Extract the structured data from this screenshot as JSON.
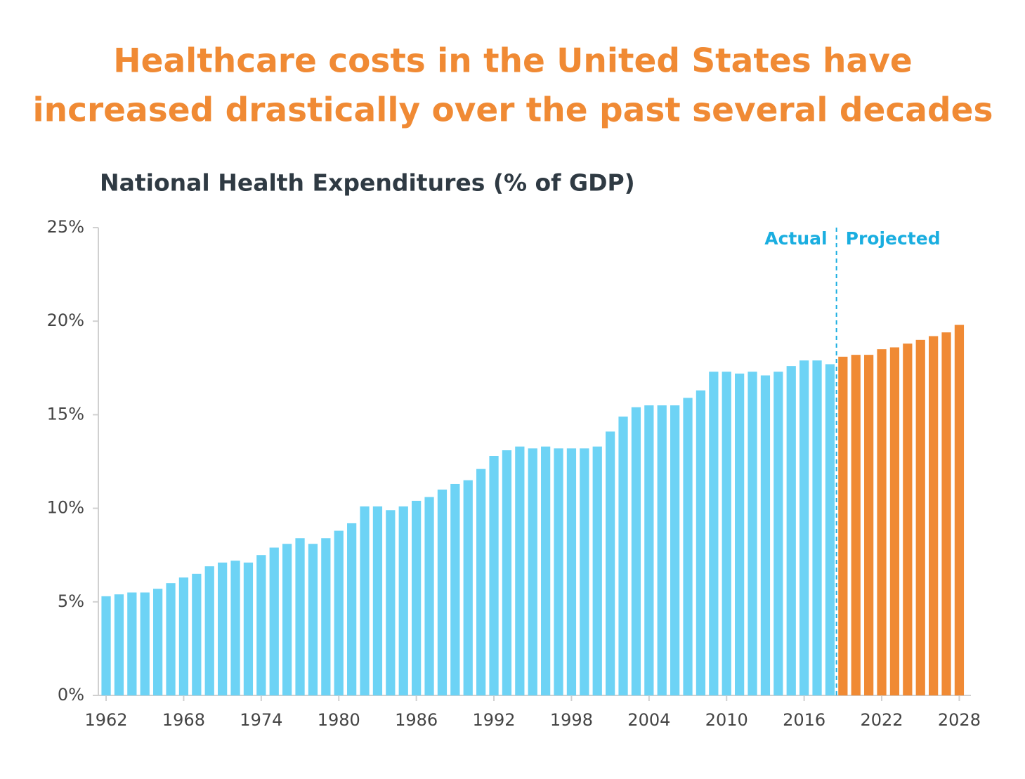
{
  "chart_data": {
    "type": "bar",
    "title": [
      "Healthcare costs in the United States have",
      "increased drastically over the past several decades"
    ],
    "subtitle": "National Health Expenditures (% of GDP)",
    "series": [
      {
        "name": "Actual",
        "color": "#6dd3f5",
        "x": [
          1962,
          1963,
          1964,
          1965,
          1966,
          1967,
          1968,
          1969,
          1970,
          1971,
          1972,
          1973,
          1974,
          1975,
          1976,
          1977,
          1978,
          1979,
          1980,
          1981,
          1982,
          1983,
          1984,
          1985,
          1986,
          1987,
          1988,
          1989,
          1990,
          1991,
          1992,
          1993,
          1994,
          1995,
          1996,
          1997,
          1998,
          1999,
          2000,
          2001,
          2002,
          2003,
          2004,
          2005,
          2006,
          2007,
          2008,
          2009,
          2010,
          2011,
          2012,
          2013,
          2014,
          2015,
          2016,
          2017,
          2018
        ],
        "values": [
          5.3,
          5.4,
          5.5,
          5.5,
          5.7,
          6.0,
          6.3,
          6.5,
          6.9,
          7.1,
          7.2,
          7.1,
          7.5,
          7.9,
          8.1,
          8.4,
          8.1,
          8.4,
          8.8,
          9.2,
          10.1,
          10.1,
          9.9,
          10.1,
          10.4,
          10.6,
          11.0,
          11.3,
          11.5,
          12.1,
          12.8,
          13.1,
          13.3,
          13.2,
          13.3,
          13.2,
          13.2,
          13.2,
          13.3,
          14.1,
          14.9,
          15.4,
          15.5,
          15.5,
          15.5,
          15.9,
          16.3,
          17.3,
          17.3,
          17.2,
          17.3,
          17.1,
          17.3,
          17.6,
          17.9,
          17.9,
          17.7
        ]
      },
      {
        "name": "Projected",
        "color": "#f08a34",
        "x": [
          2019,
          2020,
          2021,
          2022,
          2023,
          2024,
          2025,
          2026,
          2027,
          2028
        ],
        "values": [
          18.1,
          18.2,
          18.2,
          18.5,
          18.6,
          18.8,
          19.0,
          19.2,
          19.4,
          19.8
        ]
      }
    ],
    "xlim": [
      1961.4,
      2028.9
    ],
    "xticks": [
      1962,
      1968,
      1974,
      1980,
      1986,
      1992,
      1998,
      2004,
      2010,
      2016,
      2022,
      2028
    ],
    "ylim": [
      0,
      25
    ],
    "yticks": [
      {
        "value": 0,
        "label": "0%"
      },
      {
        "value": 5,
        "label": "5%"
      },
      {
        "value": 10,
        "label": "10%"
      },
      {
        "value": 15,
        "label": "15%"
      },
      {
        "value": 20,
        "label": "20%"
      },
      {
        "value": 25,
        "label": "25%"
      }
    ]
  }
}
